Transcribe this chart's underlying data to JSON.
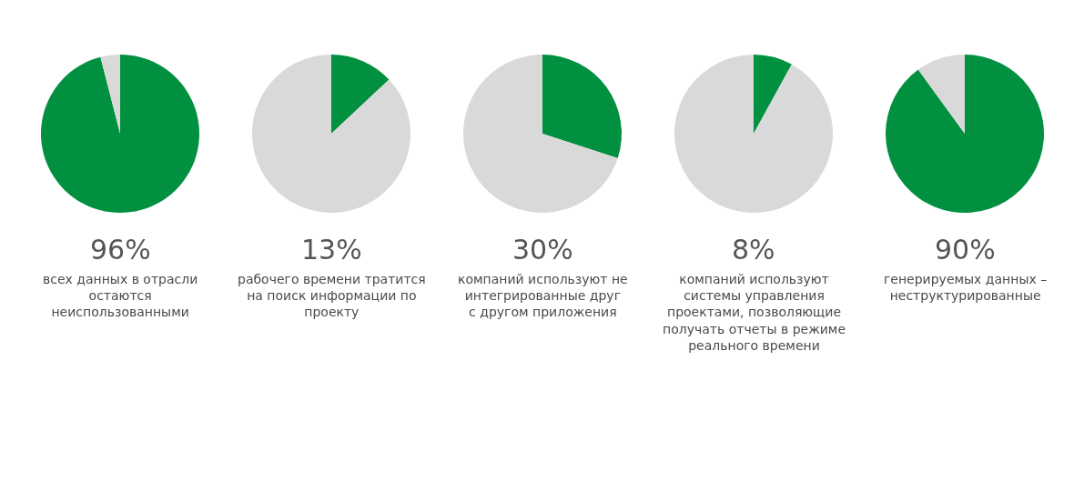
{
  "chart_data": [
    {
      "type": "pie",
      "categories": [
        null,
        null
      ],
      "values": [
        96,
        4
      ],
      "colors": [
        "#00903f",
        "#d9d9d9"
      ],
      "annotations": [
        "96%",
        "всех данных в отрасли\nостаются\nнеиспользованными"
      ]
    },
    {
      "type": "pie",
      "categories": [
        null,
        null
      ],
      "values": [
        13,
        87
      ],
      "colors": [
        "#00903f",
        "#d9d9d9"
      ],
      "annotations": [
        "13%",
        "рабочего времени тратится\nна поиск информации по\nпроекту"
      ]
    },
    {
      "type": "pie",
      "categories": [
        null,
        null
      ],
      "values": [
        30,
        70
      ],
      "colors": [
        "#00903f",
        "#d9d9d9"
      ],
      "annotations": [
        "30%",
        "компаний используют не\nинтегрированные друг\nс другом приложения"
      ]
    },
    {
      "type": "pie",
      "categories": [
        null,
        null
      ],
      "values": [
        8,
        92
      ],
      "colors": [
        "#00903f",
        "#d9d9d9"
      ],
      "annotations": [
        "8%",
        "компаний используют\nсистемы управления\nпроектами, позволяющие\nполучать отчеты в режиме\nреального времени"
      ]
    },
    {
      "type": "pie",
      "categories": [
        null,
        null
      ],
      "values": [
        90,
        10
      ],
      "colors": [
        "#00903f",
        "#d9d9d9"
      ],
      "annotations": [
        "90%",
        "генерируемых данных –\nнеструктурированные"
      ]
    }
  ]
}
